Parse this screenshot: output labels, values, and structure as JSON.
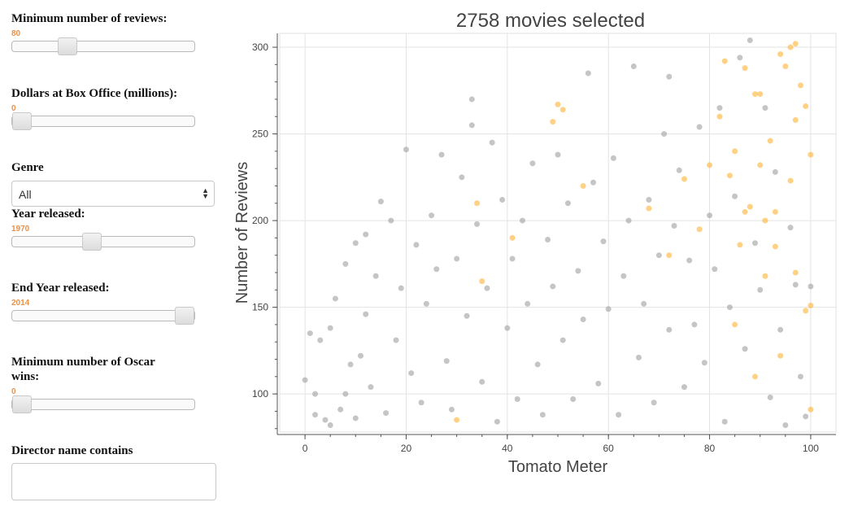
{
  "controls": {
    "min_reviews": {
      "label": "Minimum number of reviews:",
      "value": "80",
      "fraction": 0.28
    },
    "box_office": {
      "label": "Dollars at Box Office (millions):",
      "value": "0",
      "fraction": 0.0
    },
    "genre": {
      "label": "Genre",
      "selected": "All"
    },
    "year": {
      "label": "Year released:",
      "value": "1970",
      "fraction": 0.43
    },
    "end_year": {
      "label": "End Year released:",
      "value": "2014",
      "fraction": 1.0
    },
    "oscars": {
      "label": "Minimum number of Oscar wins:",
      "value": "0",
      "fraction": 0.0
    },
    "director": {
      "label": "Director name contains",
      "value": ""
    }
  },
  "colors": {
    "accent": "#e8914a",
    "point_gray": "#9e9e9e",
    "point_orange": "#ffb233",
    "title": "#444444"
  },
  "chart_data": {
    "type": "scatter",
    "title": "2758 movies selected",
    "xlabel": "Tomato Meter",
    "ylabel": "Number of Reviews",
    "xlim": [
      -5,
      105
    ],
    "ylim": [
      78,
      308
    ],
    "xticks": [
      "0",
      "20",
      "40",
      "60",
      "80",
      "100"
    ],
    "yticks": [
      "100",
      "150",
      "200",
      "250",
      "300"
    ],
    "grid": true,
    "series": [
      {
        "color": "#9e9e9e",
        "points": [
          [
            0,
            108
          ],
          [
            1,
            135
          ],
          [
            2,
            100
          ],
          [
            2,
            88
          ],
          [
            3,
            131
          ],
          [
            4,
            85
          ],
          [
            5,
            82
          ],
          [
            5,
            138
          ],
          [
            6,
            155
          ],
          [
            7,
            91
          ],
          [
            8,
            175
          ],
          [
            8,
            100
          ],
          [
            9,
            117
          ],
          [
            10,
            187
          ],
          [
            10,
            86
          ],
          [
            11,
            122
          ],
          [
            12,
            192
          ],
          [
            12,
            146
          ],
          [
            13,
            104
          ],
          [
            14,
            168
          ],
          [
            15,
            211
          ],
          [
            16,
            89
          ],
          [
            17,
            200
          ],
          [
            18,
            131
          ],
          [
            19,
            161
          ],
          [
            20,
            241
          ],
          [
            21,
            112
          ],
          [
            22,
            186
          ],
          [
            23,
            95
          ],
          [
            24,
            152
          ],
          [
            25,
            203
          ],
          [
            26,
            172
          ],
          [
            27,
            238
          ],
          [
            28,
            119
          ],
          [
            29,
            91
          ],
          [
            30,
            178
          ],
          [
            31,
            225
          ],
          [
            32,
            145
          ],
          [
            33,
            270
          ],
          [
            33,
            255
          ],
          [
            34,
            198
          ],
          [
            35,
            107
          ],
          [
            36,
            161
          ],
          [
            37,
            245
          ],
          [
            38,
            84
          ],
          [
            39,
            212
          ],
          [
            40,
            138
          ],
          [
            41,
            178
          ],
          [
            42,
            97
          ],
          [
            43,
            200
          ],
          [
            44,
            152
          ],
          [
            45,
            233
          ],
          [
            46,
            117
          ],
          [
            47,
            88
          ],
          [
            48,
            189
          ],
          [
            49,
            162
          ],
          [
            50,
            238
          ],
          [
            51,
            131
          ],
          [
            52,
            210
          ],
          [
            53,
            97
          ],
          [
            54,
            171
          ],
          [
            55,
            143
          ],
          [
            56,
            285
          ],
          [
            57,
            222
          ],
          [
            58,
            106
          ],
          [
            59,
            188
          ],
          [
            60,
            149
          ],
          [
            61,
            236
          ],
          [
            62,
            88
          ],
          [
            63,
            168
          ],
          [
            64,
            200
          ],
          [
            65,
            289
          ],
          [
            66,
            121
          ],
          [
            67,
            152
          ],
          [
            68,
            212
          ],
          [
            69,
            95
          ],
          [
            70,
            180
          ],
          [
            71,
            250
          ],
          [
            72,
            283
          ],
          [
            72,
            137
          ],
          [
            73,
            197
          ],
          [
            74,
            229
          ],
          [
            75,
            104
          ],
          [
            76,
            177
          ],
          [
            77,
            140
          ],
          [
            78,
            254
          ],
          [
            79,
            118
          ],
          [
            80,
            203
          ],
          [
            81,
            172
          ],
          [
            82,
            265
          ],
          [
            83,
            84
          ],
          [
            84,
            150
          ],
          [
            85,
            214
          ],
          [
            86,
            294
          ],
          [
            87,
            126
          ],
          [
            88,
            304
          ],
          [
            89,
            187
          ],
          [
            90,
            160
          ],
          [
            91,
            265
          ],
          [
            92,
            98
          ],
          [
            93,
            228
          ],
          [
            94,
            137
          ],
          [
            95,
            82
          ],
          [
            96,
            196
          ],
          [
            97,
            163
          ],
          [
            98,
            110
          ],
          [
            99,
            87
          ],
          [
            100,
            162
          ]
        ]
      },
      {
        "color": "#ffb233",
        "points": [
          [
            30,
            85
          ],
          [
            34,
            210
          ],
          [
            35,
            165
          ],
          [
            41,
            190
          ],
          [
            49,
            257
          ],
          [
            50,
            267
          ],
          [
            51,
            264
          ],
          [
            55,
            220
          ],
          [
            68,
            207
          ],
          [
            72,
            180
          ],
          [
            75,
            224
          ],
          [
            78,
            195
          ],
          [
            82,
            260
          ],
          [
            83,
            292
          ],
          [
            84,
            226
          ],
          [
            85,
            240
          ],
          [
            86,
            186
          ],
          [
            87,
            288
          ],
          [
            88,
            208
          ],
          [
            89,
            273
          ],
          [
            90,
            232
          ],
          [
            90,
            273
          ],
          [
            91,
            200
          ],
          [
            92,
            246
          ],
          [
            93,
            205
          ],
          [
            94,
            296
          ],
          [
            95,
            289
          ],
          [
            96,
            300
          ],
          [
            96,
            223
          ],
          [
            97,
            302
          ],
          [
            97,
            258
          ],
          [
            98,
            278
          ],
          [
            99,
            266
          ],
          [
            99,
            148
          ],
          [
            100,
            238
          ],
          [
            100,
            151
          ],
          [
            100,
            91
          ],
          [
            94,
            122
          ],
          [
            89,
            110
          ],
          [
            91,
            168
          ],
          [
            87,
            205
          ],
          [
            80,
            232
          ],
          [
            93,
            185
          ],
          [
            97,
            170
          ],
          [
            85,
            140
          ]
        ]
      }
    ]
  }
}
